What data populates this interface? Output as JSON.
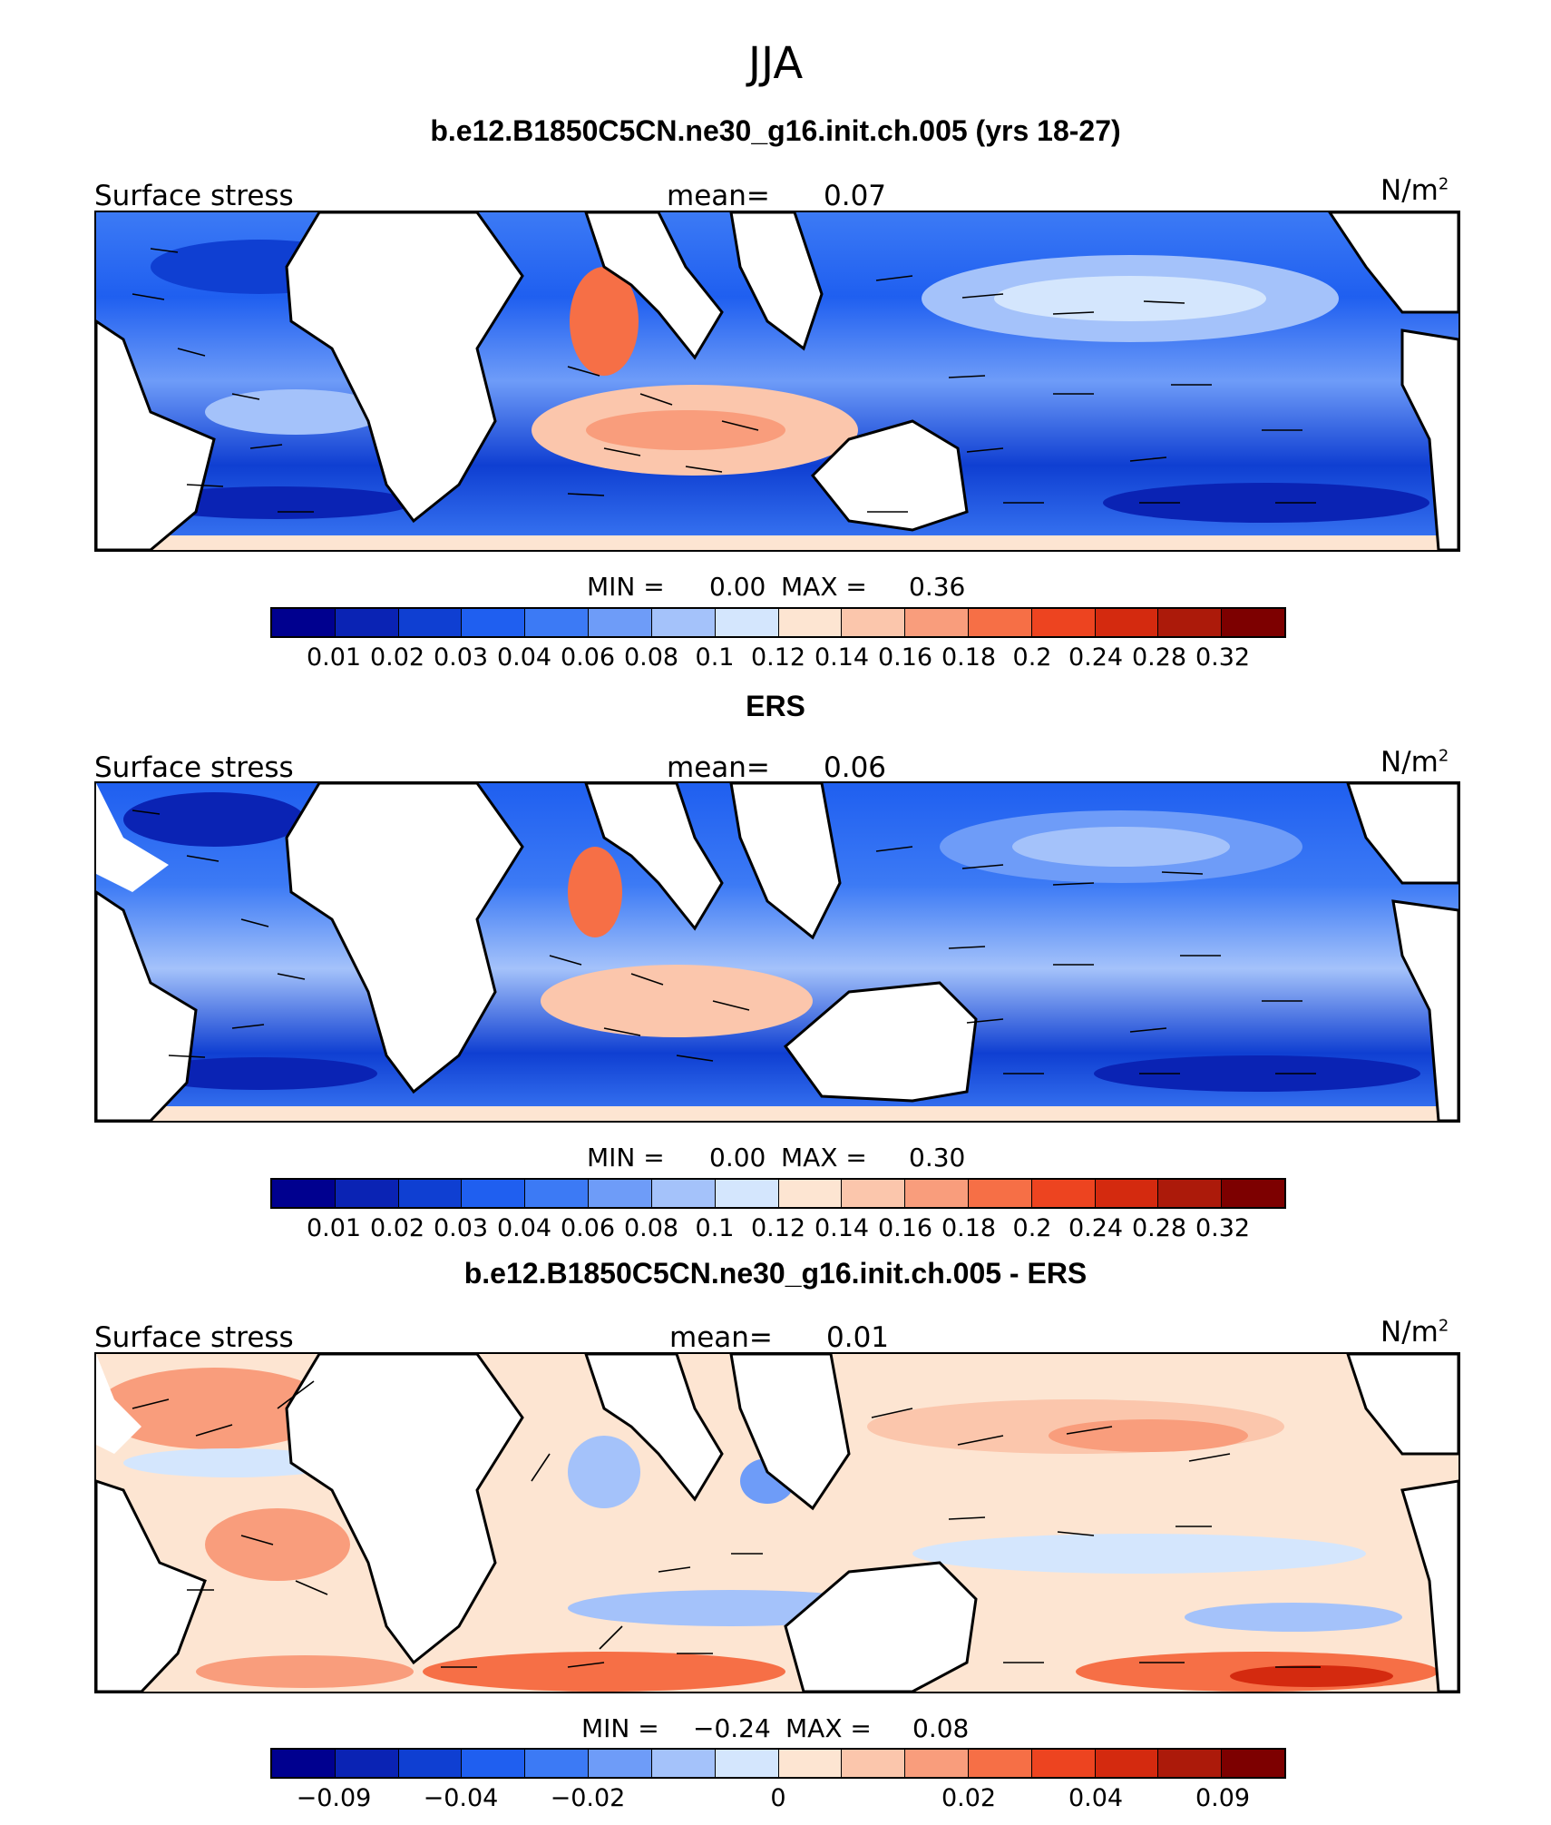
{
  "figure_title": "JJA",
  "panels": [
    {
      "title": "b.e12.B1850C5CN.ne30_g16.init.ch.005 (yrs 18-27)",
      "left_label": "Surface stress",
      "mean_label": "mean=",
      "mean_value": "0.07",
      "units_base": "N/m",
      "units_exp": "2",
      "min_label": "MIN =",
      "min_value": "0.00",
      "max_label": "MAX =",
      "max_value": "0.36",
      "ticks": [
        "0.01",
        "0.02",
        "0.03",
        "0.04",
        "0.06",
        "0.08",
        "0.1",
        "0.12",
        "0.14",
        "0.16",
        "0.18",
        "0.2",
        "0.24",
        "0.28",
        "0.32"
      ]
    },
    {
      "title": "ERS",
      "left_label": "Surface stress",
      "mean_label": "mean=",
      "mean_value": "0.06",
      "units_base": "N/m",
      "units_exp": "2",
      "min_label": "MIN =",
      "min_value": "0.00",
      "max_label": "MAX =",
      "max_value": "0.30",
      "ticks": [
        "0.01",
        "0.02",
        "0.03",
        "0.04",
        "0.06",
        "0.08",
        "0.1",
        "0.12",
        "0.14",
        "0.16",
        "0.18",
        "0.2",
        "0.24",
        "0.28",
        "0.32"
      ]
    },
    {
      "title": "b.e12.B1850C5CN.ne30_g16.init.ch.005 - ERS",
      "left_label": "Surface stress",
      "mean_label": "mean=",
      "mean_value": "0.01",
      "units_base": "N/m",
      "units_exp": "2",
      "min_label": "MIN =",
      "min_value": "−0.24",
      "max_label": "MAX =",
      "max_value": "0.08",
      "ticks": [
        "−0.09",
        "−0.04",
        "−0.02",
        "0",
        "0.02",
        "0.04",
        "0.09"
      ]
    }
  ],
  "colorbar_colors": [
    "#00008f",
    "#0a23b4",
    "#0f3fd2",
    "#1f5ff0",
    "#3c7af5",
    "#6e9cf8",
    "#a4c2fa",
    "#d4e6fd",
    "#fde5d2",
    "#fbc6ac",
    "#f99d7c",
    "#f66f46",
    "#ed4420",
    "#d42a0f",
    "#ac1a0a",
    "#7d0000"
  ],
  "land_color": "#ffffff"
}
